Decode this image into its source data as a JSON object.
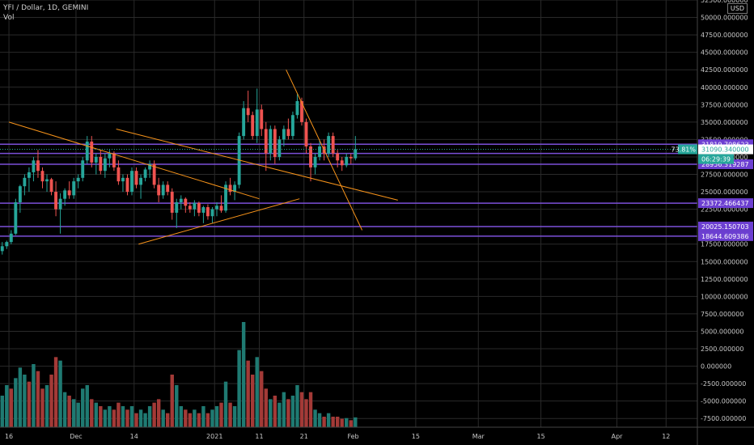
{
  "header": {
    "symbol_line": "YFI / Dollar, 1D, GEMINI",
    "volume_label": "Vol",
    "currency": "USD"
  },
  "colors": {
    "background": "#000000",
    "grid": "#2a2a2a",
    "up": "#26a69a",
    "down": "#ef5350",
    "up_volume": "#1f7a72",
    "down_volume": "#a33a37",
    "level_line": "#7b4fd8",
    "trendline": "#f7931a",
    "axis_text": "#c8c8c8",
    "last_price_badge": "#26a69a",
    "level_badge": "#6c3fd1",
    "countdown_badge": "#26a69a"
  },
  "chart_data": {
    "type": "candlestick",
    "y_axis": {
      "range": [
        -8750,
        52500
      ],
      "ticks": [
        -7500,
        -5000,
        -2500,
        0,
        2500,
        5000,
        7500,
        10000,
        12500,
        15000,
        17500,
        20000,
        22500,
        25000,
        27500,
        30000,
        32500,
        35000,
        37500,
        40000,
        42500,
        45000,
        47500,
        50000,
        52500
      ],
      "tick_labels": [
        "-7500.000000",
        "-5000.000000",
        "-2500.000000",
        "0.000000",
        "2500.000000",
        "5000.000000",
        "7500.000000",
        "10000.000000",
        "12500.000000",
        "15000.000000",
        "17500.000000",
        "20000.000000",
        "22500.000000",
        "25000.000000",
        "27500.000000",
        "30000.000000",
        "32500.000000",
        "35000.000000",
        "37500.000000",
        "40000.000000",
        "42500.000000",
        "45000.000000",
        "47500.000000",
        "50000.000000",
        "52500.000000"
      ]
    },
    "x_axis": {
      "range": [
        "2020-11-14",
        "2021-04-19"
      ],
      "tick_dates": [
        "2020-11-16",
        "2020-12-01",
        "2020-12-14",
        "2021-01-01",
        "2021-01-11",
        "2021-01-21",
        "2021-02-01",
        "2021-02-15",
        "2021-03-01",
        "2021-03-15",
        "2021-04-01",
        "2021-04-12"
      ],
      "tick_labels": [
        "16",
        "Dec",
        "14",
        "2021",
        "11",
        "21",
        "Feb",
        "15",
        "Mar",
        "15",
        "Apr",
        "12"
      ]
    },
    "grid": true,
    "candles_start_date": "2020-11-14",
    "candles": [
      [
        16500,
        17800,
        16000,
        17200
      ],
      [
        17200,
        18000,
        16800,
        17800
      ],
      [
        17800,
        19500,
        17500,
        19000
      ],
      [
        19000,
        24000,
        18800,
        23500
      ],
      [
        23500,
        26000,
        22000,
        25800
      ],
      [
        25800,
        27500,
        24500,
        27000
      ],
      [
        27000,
        28500,
        25000,
        27800
      ],
      [
        27800,
        30000,
        26500,
        29500
      ],
      [
        29500,
        31000,
        27000,
        28000
      ],
      [
        28000,
        28500,
        25500,
        26500
      ],
      [
        26500,
        27500,
        25000,
        26800
      ],
      [
        26800,
        27000,
        24500,
        25000
      ],
      [
        25000,
        26500,
        21500,
        22500
      ],
      [
        22500,
        24800,
        19000,
        24000
      ],
      [
        24000,
        25500,
        23000,
        25200
      ],
      [
        25200,
        26500,
        24000,
        24500
      ],
      [
        24500,
        27000,
        24000,
        26500
      ],
      [
        26500,
        27500,
        25500,
        27000
      ],
      [
        27000,
        30000,
        26500,
        29500
      ],
      [
        29500,
        33000,
        29000,
        32200
      ],
      [
        32200,
        33000,
        28500,
        29200
      ],
      [
        29200,
        30500,
        27500,
        30000
      ],
      [
        30000,
        31000,
        27500,
        28000
      ],
      [
        28000,
        30500,
        27000,
        29800
      ],
      [
        29800,
        31000,
        28500,
        30500
      ],
      [
        30500,
        30800,
        28000,
        28500
      ],
      [
        28500,
        29500,
        26000,
        26500
      ],
      [
        26500,
        27500,
        25000,
        27000
      ],
      [
        27000,
        27500,
        24500,
        25000
      ],
      [
        25000,
        28500,
        24500,
        28000
      ],
      [
        28000,
        28500,
        25500,
        26000
      ],
      [
        26000,
        27500,
        24000,
        27000
      ],
      [
        27000,
        28500,
        26500,
        28200
      ],
      [
        28200,
        29500,
        27000,
        29000
      ],
      [
        29000,
        29500,
        25500,
        26000
      ],
      [
        26000,
        27000,
        23500,
        24500
      ],
      [
        24500,
        26500,
        24000,
        26000
      ],
      [
        26000,
        26500,
        24500,
        25000
      ],
      [
        25000,
        25500,
        21000,
        22000
      ],
      [
        22000,
        24000,
        19800,
        23500
      ],
      [
        23500,
        24500,
        22500,
        24000
      ],
      [
        24000,
        24200,
        22000,
        23000
      ],
      [
        23000,
        23500,
        22000,
        22500
      ],
      [
        22500,
        23800,
        21500,
        23400
      ],
      [
        23400,
        23600,
        21500,
        22000
      ],
      [
        22000,
        23000,
        20500,
        22800
      ],
      [
        22800,
        23200,
        21000,
        21500
      ],
      [
        21500,
        22800,
        20500,
        22500
      ],
      [
        22500,
        23500,
        21500,
        23000
      ],
      [
        23000,
        24500,
        22000,
        22300
      ],
      [
        22300,
        26500,
        22000,
        26000
      ],
      [
        26000,
        27000,
        24500,
        25000
      ],
      [
        25000,
        26500,
        23800,
        26000
      ],
      [
        26000,
        33500,
        25500,
        33000
      ],
      [
        33000,
        38000,
        32500,
        37000
      ],
      [
        37000,
        39500,
        35000,
        36000
      ],
      [
        36000,
        36500,
        32500,
        33000
      ],
      [
        33000,
        39800,
        32000,
        36800
      ],
      [
        36800,
        37500,
        33000,
        34000
      ],
      [
        34000,
        35000,
        28000,
        30500
      ],
      [
        30500,
        34500,
        29500,
        34000
      ],
      [
        34000,
        34500,
        29000,
        30000
      ],
      [
        30000,
        33000,
        29500,
        32500
      ],
      [
        32500,
        34500,
        31500,
        34000
      ],
      [
        34000,
        35500,
        32500,
        33000
      ],
      [
        33000,
        36500,
        32500,
        36000
      ],
      [
        36000,
        39000,
        35500,
        38000
      ],
      [
        38000,
        38500,
        34500,
        35000
      ],
      [
        35000,
        35500,
        30500,
        31500
      ],
      [
        31500,
        32000,
        26500,
        28500
      ],
      [
        28500,
        30500,
        27500,
        30000
      ],
      [
        30000,
        32500,
        29500,
        31500
      ],
      [
        31500,
        32500,
        29500,
        30500
      ],
      [
        30500,
        33500,
        30000,
        33000
      ],
      [
        33000,
        33500,
        30000,
        30500
      ],
      [
        30500,
        31000,
        28500,
        29500
      ],
      [
        29500,
        30000,
        28000,
        28800
      ],
      [
        28800,
        30500,
        28500,
        30000
      ],
      [
        30000,
        30500,
        29000,
        29800
      ],
      [
        29800,
        33000,
        29500,
        31090
      ]
    ],
    "volume": [
      [
        4500,
        1
      ],
      [
        6000,
        1
      ],
      [
        5500,
        0
      ],
      [
        7000,
        1
      ],
      [
        8500,
        1
      ],
      [
        7500,
        1
      ],
      [
        6500,
        0
      ],
      [
        9000,
        1
      ],
      [
        8000,
        0
      ],
      [
        5500,
        0
      ],
      [
        6000,
        1
      ],
      [
        7500,
        0
      ],
      [
        10000,
        0
      ],
      [
        9500,
        1
      ],
      [
        5000,
        1
      ],
      [
        4500,
        0
      ],
      [
        4000,
        1
      ],
      [
        3500,
        1
      ],
      [
        5500,
        1
      ],
      [
        6000,
        1
      ],
      [
        4000,
        0
      ],
      [
        3500,
        1
      ],
      [
        3000,
        0
      ],
      [
        2500,
        1
      ],
      [
        3000,
        1
      ],
      [
        2500,
        0
      ],
      [
        3500,
        0
      ],
      [
        3000,
        1
      ],
      [
        2500,
        0
      ],
      [
        3000,
        1
      ],
      [
        2000,
        0
      ],
      [
        2500,
        1
      ],
      [
        2000,
        1
      ],
      [
        3000,
        1
      ],
      [
        3500,
        0
      ],
      [
        4000,
        0
      ],
      [
        2500,
        1
      ],
      [
        2000,
        0
      ],
      [
        7500,
        0
      ],
      [
        6000,
        1
      ],
      [
        3000,
        1
      ],
      [
        2500,
        0
      ],
      [
        2000,
        0
      ],
      [
        2500,
        1
      ],
      [
        2000,
        0
      ],
      [
        3000,
        1
      ],
      [
        2000,
        0
      ],
      [
        2500,
        1
      ],
      [
        3000,
        1
      ],
      [
        3500,
        0
      ],
      [
        6500,
        1
      ],
      [
        3500,
        0
      ],
      [
        3000,
        1
      ],
      [
        11000,
        1
      ],
      [
        15000,
        1
      ],
      [
        9500,
        0
      ],
      [
        7500,
        0
      ],
      [
        10000,
        1
      ],
      [
        8000,
        0
      ],
      [
        5500,
        0
      ],
      [
        4000,
        1
      ],
      [
        4500,
        0
      ],
      [
        3500,
        1
      ],
      [
        5000,
        1
      ],
      [
        4000,
        0
      ],
      [
        4500,
        1
      ],
      [
        6000,
        1
      ],
      [
        5000,
        0
      ],
      [
        4000,
        0
      ],
      [
        5000,
        0
      ],
      [
        2500,
        1
      ],
      [
        2000,
        1
      ],
      [
        1500,
        0
      ],
      [
        2000,
        1
      ],
      [
        1500,
        0
      ],
      [
        1500,
        0
      ],
      [
        1200,
        0
      ],
      [
        1300,
        1
      ],
      [
        1000,
        0
      ],
      [
        1400,
        1
      ]
    ],
    "trendlines": [
      {
        "from": [
          "2020-11-16",
          35000
        ],
        "to": [
          "2021-01-11",
          24000
        ]
      },
      {
        "from": [
          "2020-12-10",
          34000
        ],
        "to": [
          "2021-02-11",
          23800
        ]
      },
      {
        "from": [
          "2020-12-15",
          17500
        ],
        "to": [
          "2021-01-20",
          24000
        ]
      },
      {
        "from": [
          "2021-01-17",
          42500
        ],
        "to": [
          "2021-02-03",
          19500
        ]
      }
    ],
    "horizontal_levels": [
      {
        "value": 31819.708623,
        "label": "31819.708623"
      },
      {
        "value": 30500,
        "label": ""
      },
      {
        "value": 28956.319287,
        "label": "28956.319287"
      },
      {
        "value": 23372.466437,
        "label": "23372.466437"
      },
      {
        "value": 20025.150703,
        "label": "20025.150703"
      },
      {
        "value": 18644.609386,
        "label": "18644.609386"
      }
    ],
    "last_price": {
      "value": 31090.34,
      "label": "31090.340000",
      "change_label": "73.81%",
      "countdown": "06:29:39"
    },
    "markers": [
      {
        "value": 31819.708623,
        "label": "31819.708623",
        "kind": "level"
      },
      {
        "value": 28956.319287,
        "label": "28956.319287",
        "kind": "level"
      },
      {
        "value": 23372.466437,
        "label": "23372.466437",
        "kind": "level"
      },
      {
        "value": 20025.150703,
        "label": "20025.150703",
        "kind": "level"
      },
      {
        "value": 18644.609386,
        "label": "18644.609386",
        "kind": "level"
      }
    ]
  }
}
